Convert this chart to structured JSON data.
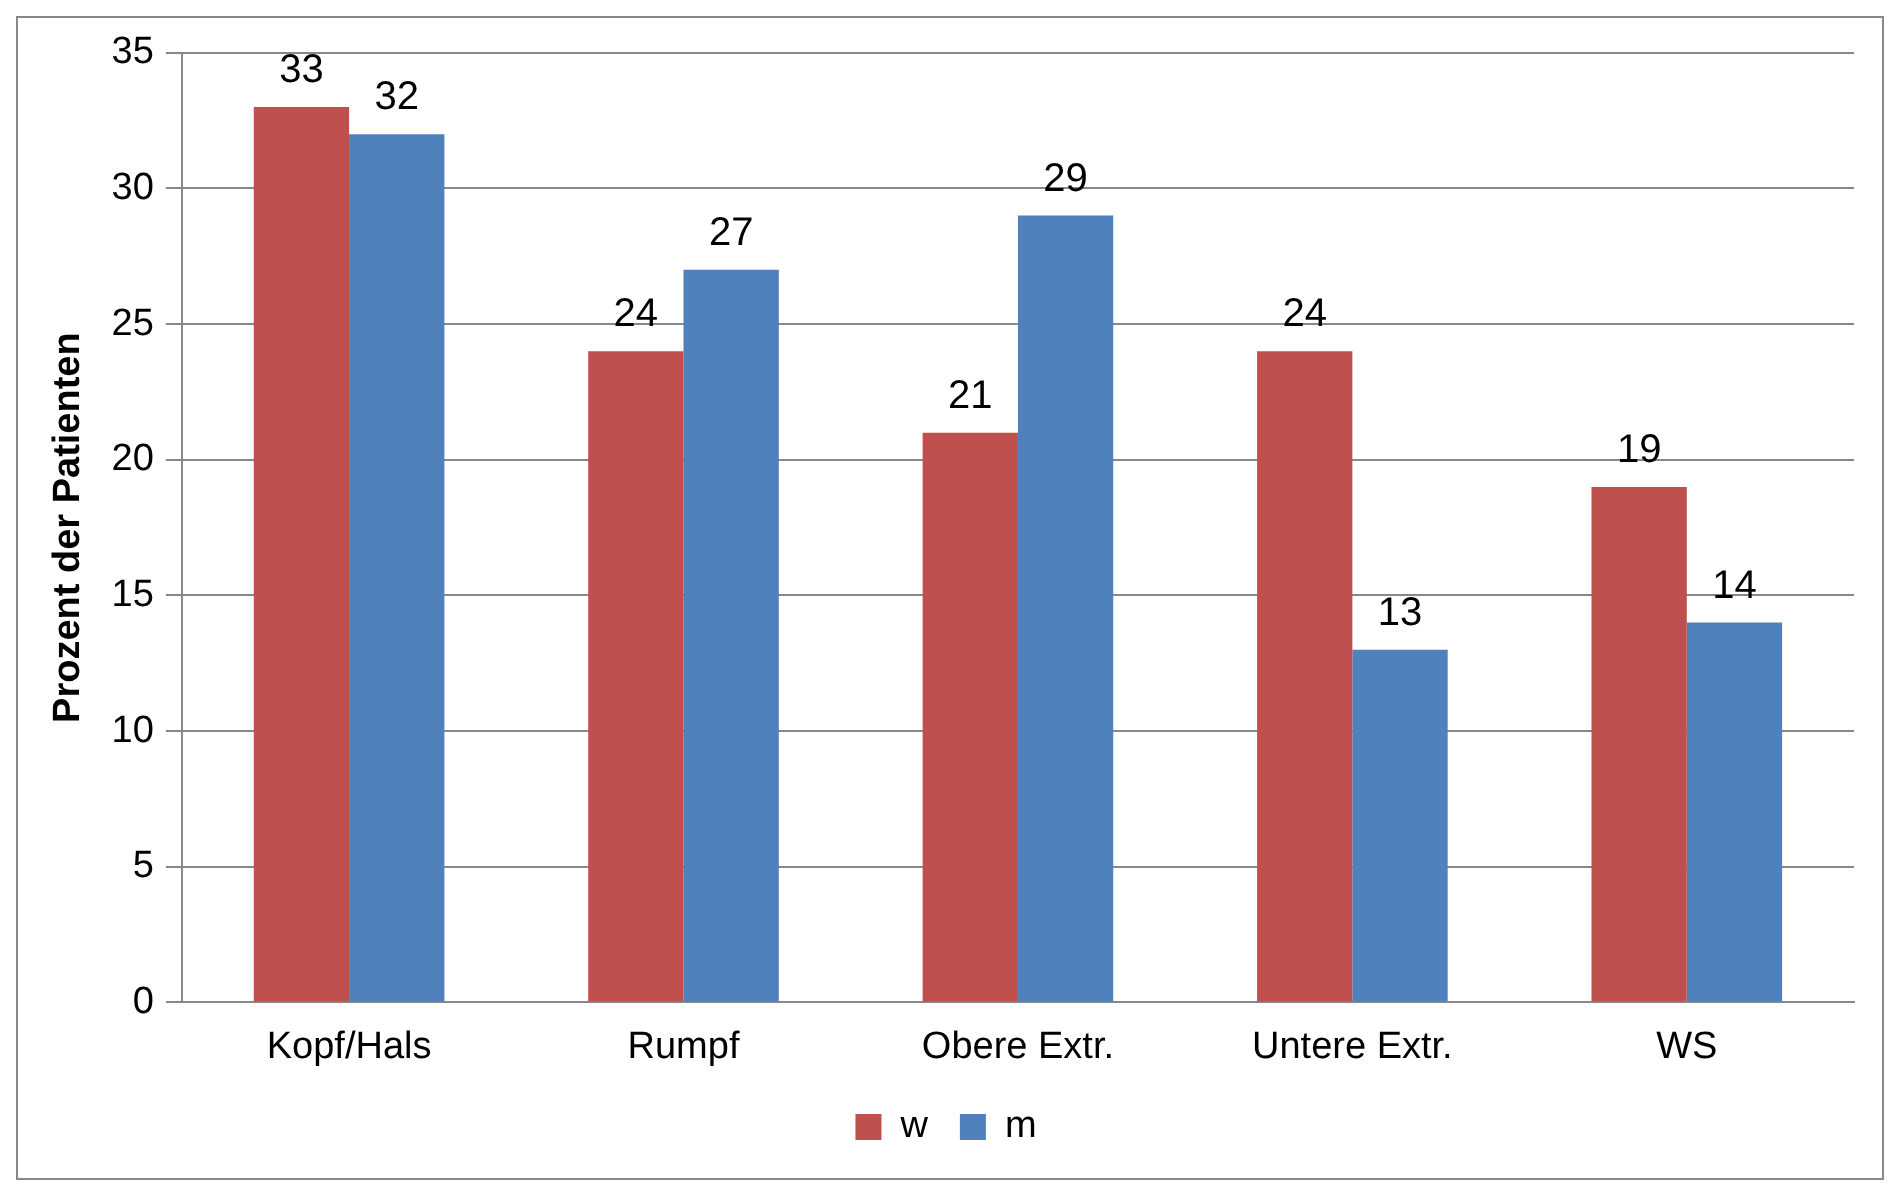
{
  "chart_data": {
    "type": "bar",
    "ylabel": "Prozent der Patienten",
    "categories": [
      "Kopf/Hals",
      "Rumpf",
      "Obere Extr.",
      "Untere Extr.",
      "WS"
    ],
    "series": [
      {
        "name": "w",
        "color": "#c0504d",
        "values": [
          33,
          24,
          21,
          24,
          19
        ]
      },
      {
        "name": "m",
        "color": "#4f81bd",
        "values": [
          32,
          27,
          29,
          13,
          14
        ]
      }
    ],
    "ylim": [
      0,
      35
    ],
    "yticks": [
      0,
      5,
      10,
      15,
      20,
      25,
      30,
      35
    ],
    "grid": "y",
    "legend": "bottom",
    "data_labels": true
  }
}
